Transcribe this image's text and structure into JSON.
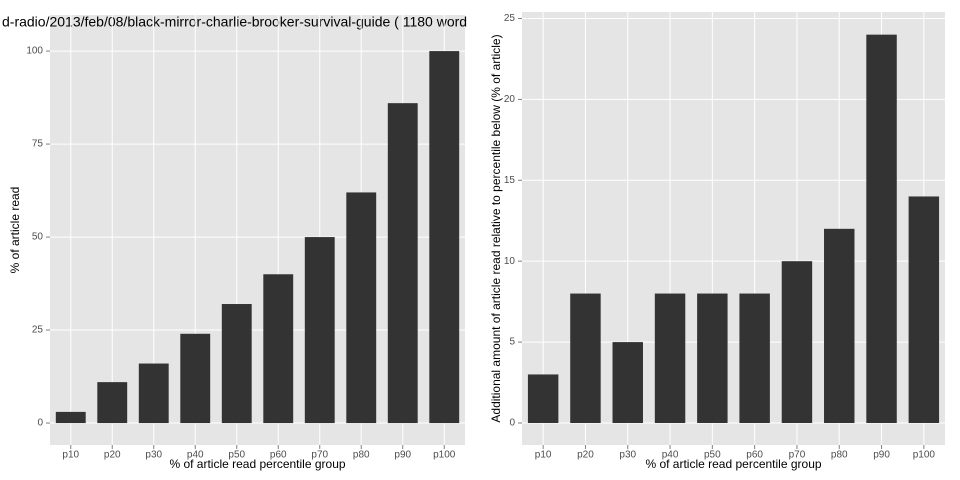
{
  "chart_data": [
    {
      "type": "bar",
      "title": "d-radio/2013/feb/08/black-mirror-charlie-brooker-survival-guide ( 1180 word",
      "x_label": "% of article read percentile group",
      "y_label": "% of article read",
      "categories": [
        "p10",
        "p20",
        "p30",
        "p40",
        "p50",
        "p60",
        "p70",
        "p80",
        "p90",
        "p100"
      ],
      "values": [
        3,
        11,
        16,
        24,
        32,
        40,
        50,
        62,
        86,
        100
      ],
      "color": "#333333",
      "ylim": [
        -5.9,
        109.7
      ],
      "yticks": [
        0,
        25,
        50,
        75,
        100
      ],
      "grid": true
    },
    {
      "type": "bar",
      "x_label": "% of article read percentile group",
      "y_label": "Additional amount of article read relative to percentile below (% of article)",
      "categories": [
        "p10",
        "p20",
        "p30",
        "p40",
        "p50",
        "p60",
        "p70",
        "p80",
        "p90",
        "p100"
      ],
      "values": [
        3,
        8,
        5,
        8,
        8,
        8,
        10,
        12,
        24,
        14
      ],
      "color": "#333333",
      "ylim": [
        -1.36,
        25.4
      ],
      "yticks": [
        0,
        5,
        10,
        15,
        20,
        25
      ],
      "grid": true
    }
  ]
}
